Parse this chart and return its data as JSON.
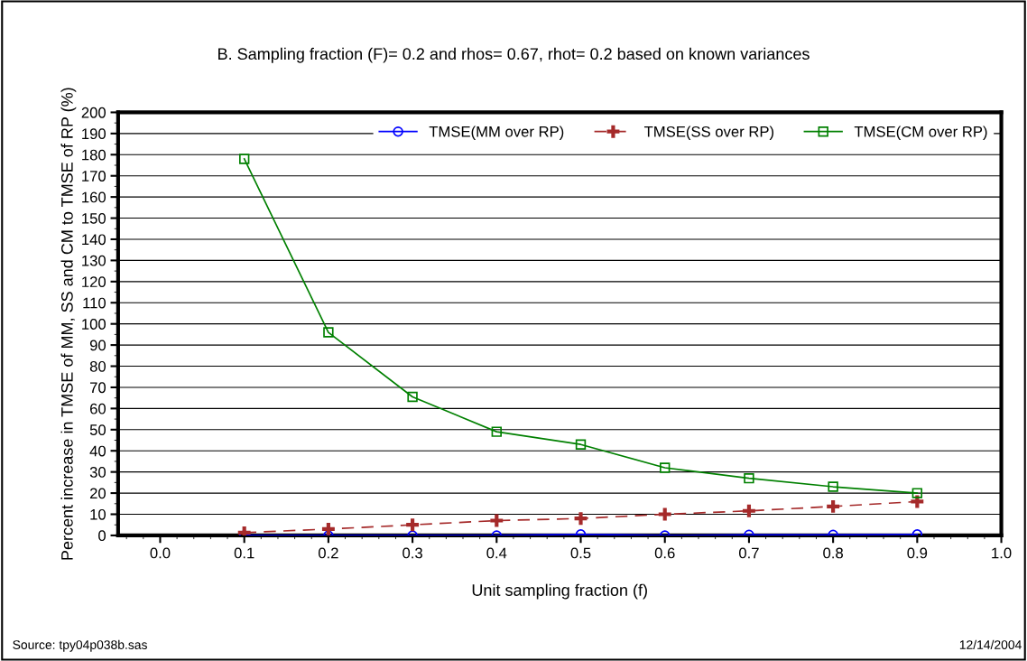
{
  "chart_data": {
    "type": "line",
    "title": "B. Sampling fraction (F)= 0.2 and rhos= 0.67, rhot= 0.2 based on known variances",
    "xlabel": "Unit sampling fraction (f)",
    "ylabel": "Percent increase in TMSE of MM, SS and CM to TMSE of RP (%)",
    "x": [
      0.1,
      0.2,
      0.3,
      0.4,
      0.5,
      0.6,
      0.7,
      0.8,
      0.9
    ],
    "series": [
      {
        "name": "TMSE(MM over RP)",
        "color": "#0000ff",
        "marker": "circle",
        "line_style": "solid",
        "values": [
          0,
          0,
          0,
          0,
          0.5,
          0,
          0.3,
          0.3,
          0.5
        ]
      },
      {
        "name": "TMSE(SS over RP)",
        "color": "#a52a2a",
        "marker": "cross",
        "line_style": "dashed",
        "values": [
          1.3,
          3,
          5,
          7,
          8,
          10,
          11.6,
          13.7,
          16
        ]
      },
      {
        "name": "TMSE(CM over RP)",
        "color": "#008000",
        "marker": "square",
        "line_style": "solid",
        "values": [
          178,
          96,
          65.5,
          49,
          43,
          32,
          27,
          23,
          20
        ]
      }
    ],
    "xlim": [
      -0.05,
      1.0
    ],
    "xticks": [
      {
        "value": 0.0,
        "label": "0.0"
      },
      0.1,
      0.2,
      0.3,
      0.4,
      0.5,
      0.6,
      0.7,
      0.8,
      0.9,
      {
        "value": 1.0,
        "label": "1.0"
      }
    ],
    "ylim": [
      0,
      200
    ],
    "yticks": [
      0,
      10,
      20,
      30,
      40,
      50,
      60,
      70,
      80,
      90,
      100,
      110,
      120,
      130,
      140,
      150,
      160,
      170,
      180,
      190,
      200
    ],
    "grid": "y",
    "legend": "top right",
    "annotations": [
      "Source: tpy04p038b.sas",
      "12/14/2004"
    ]
  }
}
